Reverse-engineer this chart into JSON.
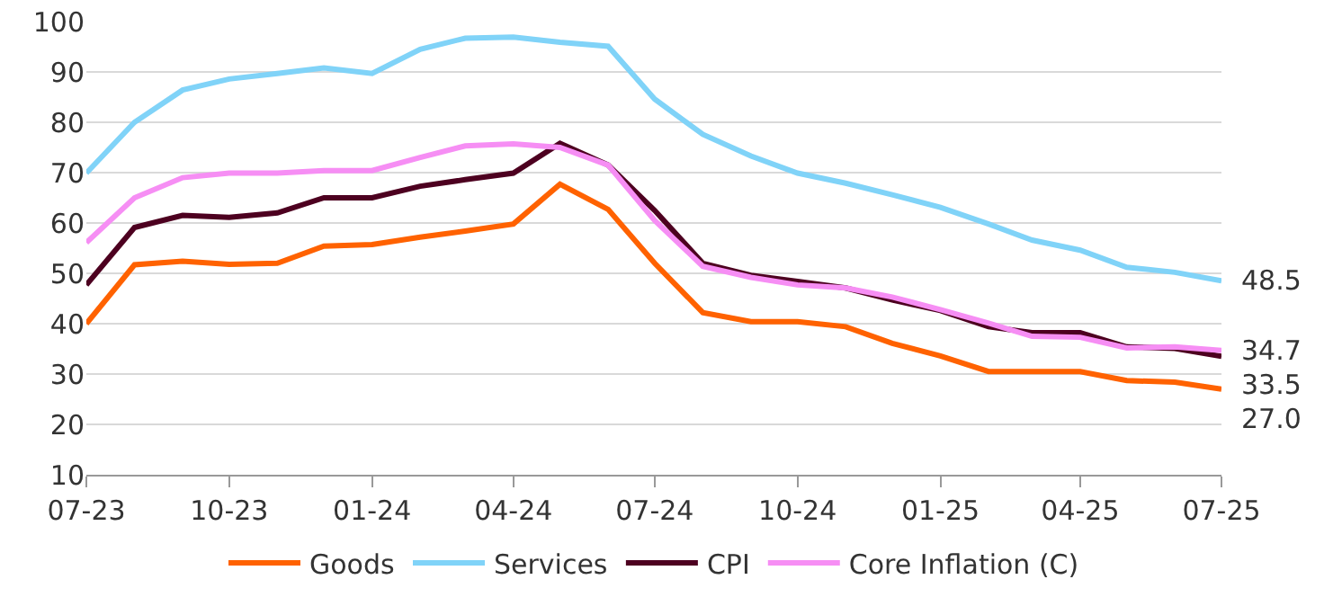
{
  "chart_data": {
    "type": "line",
    "x": [
      "2023-07",
      "2023-08",
      "2023-09",
      "2023-10",
      "2023-11",
      "2023-12",
      "2024-01",
      "2024-02",
      "2024-03",
      "2024-04",
      "2024-05",
      "2024-06",
      "2024-07",
      "2024-08",
      "2024-09",
      "2024-10",
      "2024-11",
      "2024-12",
      "2025-01",
      "2025-02",
      "2025-03",
      "2025-04",
      "2025-05",
      "2025-06",
      "2025-07"
    ],
    "series": [
      {
        "name": "Goods",
        "color": "#ff6200",
        "values": [
          40,
          51.7,
          52.4,
          51.8,
          52,
          55.4,
          55.7,
          57.2,
          58.4,
          59.8,
          67.7,
          62.7,
          52,
          42.2,
          40.4,
          40.4,
          39.4,
          36.1,
          33.6,
          30.5,
          30.5,
          30.5,
          28.7,
          28.4,
          27.0
        ],
        "value_labels": [
          null,
          null,
          null,
          null,
          null,
          null,
          null,
          null,
          null,
          null,
          null,
          null,
          null,
          null,
          null,
          null,
          null,
          null,
          null,
          null,
          null,
          null,
          null,
          null,
          "27.0"
        ]
      },
      {
        "name": "Services",
        "color": "#80d3f8",
        "values": [
          69.9,
          80,
          86.4,
          88.6,
          89.7,
          90.8,
          89.7,
          94.5,
          96.7,
          96.9,
          95.9,
          95.1,
          84.6,
          77.6,
          73.3,
          69.9,
          67.9,
          65.6,
          63.1,
          59.8,
          56.6,
          54.6,
          51.2,
          50.2,
          48.5
        ],
        "value_labels": [
          null,
          null,
          null,
          null,
          null,
          null,
          null,
          null,
          null,
          null,
          null,
          null,
          null,
          null,
          null,
          null,
          null,
          null,
          null,
          null,
          null,
          null,
          null,
          null,
          "48.5"
        ]
      },
      {
        "name": "CPI",
        "color": "#4d0020",
        "values": [
          47.7,
          59.1,
          61.5,
          61.1,
          62,
          65,
          65,
          67.3,
          68.6,
          69.9,
          75.8,
          71.5,
          62.5,
          52,
          49.6,
          48.4,
          47.1,
          44.7,
          42.6,
          39.4,
          38.2,
          38.2,
          35.4,
          35.1,
          33.5
        ],
        "value_labels": [
          null,
          null,
          null,
          null,
          null,
          null,
          null,
          null,
          null,
          null,
          null,
          null,
          null,
          null,
          null,
          null,
          null,
          null,
          null,
          null,
          null,
          null,
          null,
          null,
          "33.5"
        ]
      },
      {
        "name": "Core Inflation (C)",
        "color": "#f68ef4",
        "values": [
          56.1,
          65,
          69,
          69.9,
          69.9,
          70.4,
          70.4,
          73,
          75.3,
          75.7,
          75,
          71.5,
          60.5,
          51.4,
          49.2,
          47.7,
          47.1,
          45.3,
          42.8,
          40.1,
          37.5,
          37.3,
          35.2,
          35.4,
          34.7
        ],
        "value_labels": [
          null,
          null,
          null,
          null,
          null,
          null,
          null,
          null,
          null,
          null,
          null,
          null,
          null,
          null,
          null,
          null,
          null,
          null,
          null,
          null,
          null,
          null,
          null,
          null,
          "34.7"
        ]
      }
    ],
    "xlim": [
      "2023-07",
      "2025-07"
    ],
    "xticks": [
      {
        "value": "2023-07",
        "label": "07-23"
      },
      {
        "value": "2023-10",
        "label": "10-23"
      },
      {
        "value": "2024-01",
        "label": "01-24"
      },
      {
        "value": "2024-04",
        "label": "04-24"
      },
      {
        "value": "2024-07",
        "label": "07-24"
      },
      {
        "value": "2024-10",
        "label": "10-24"
      },
      {
        "value": "2025-01",
        "label": "01-25"
      },
      {
        "value": "2025-04",
        "label": "04-25"
      },
      {
        "value": "2025-07",
        "label": "07-25"
      }
    ],
    "ylim": [
      10,
      100
    ],
    "yticks": [
      10,
      20,
      30,
      40,
      50,
      60,
      70,
      80,
      90,
      100
    ],
    "grid": "y",
    "legend": "bottom",
    "marker": "none",
    "line_style": "solid"
  }
}
